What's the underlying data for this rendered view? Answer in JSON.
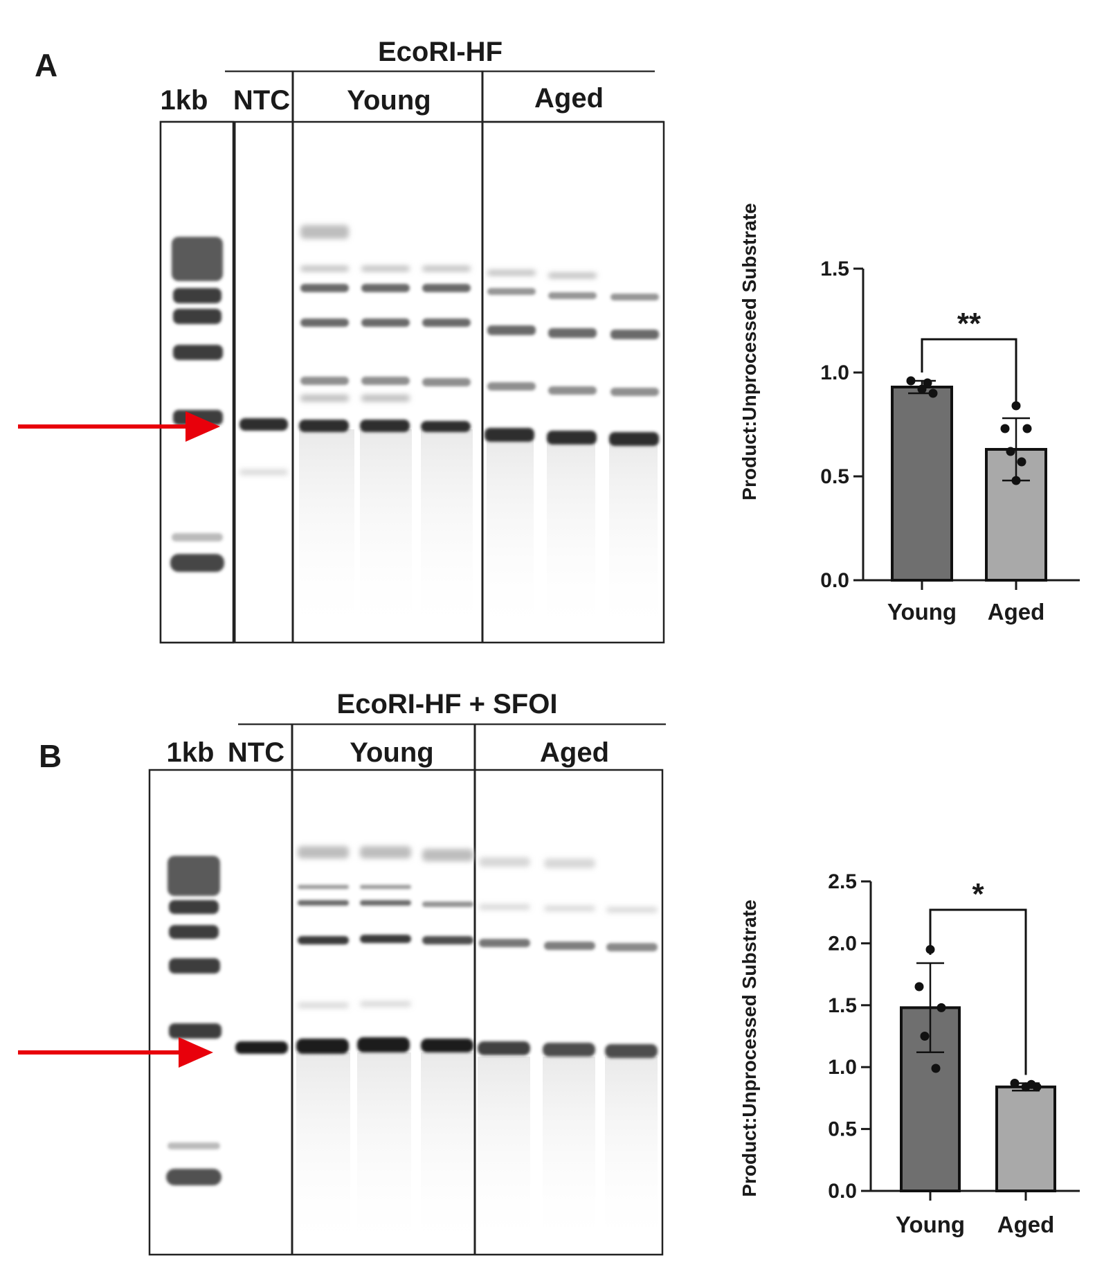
{
  "figure": {
    "panel_a": {
      "letter": "A",
      "enzyme": "EcoRI-HF",
      "lanes": {
        "ladder": "1kb",
        "ntc": "NTC",
        "young": "Young",
        "aged": "Aged"
      }
    },
    "panel_b": {
      "letter": "B",
      "enzyme": "EcoRI-HF + SFOI",
      "lanes": {
        "ladder": "1kb",
        "ntc": "NTC",
        "young": "Young",
        "aged": "Aged"
      }
    },
    "colors": {
      "arrow": "#e8000b",
      "bar_young": "#6f6f6f",
      "bar_aged": "#a9a9a9",
      "gel_band": "#2a2a2a"
    }
  },
  "chart_data": [
    {
      "type": "bar",
      "categories": [
        "Young",
        "Aged"
      ],
      "values": [
        0.93,
        0.63
      ],
      "errors": [
        0.03,
        0.15
      ],
      "points": [
        [
          0.96,
          0.92,
          0.9,
          0.95
        ],
        [
          0.84,
          0.73,
          0.73,
          0.62,
          0.57,
          0.48
        ]
      ],
      "ylabel": "Product:Unprocessed Substrate",
      "ylim": [
        0,
        1.5
      ],
      "yticks": [
        "0.0",
        "0.5",
        "1.0",
        "1.5"
      ],
      "significance": "**"
    },
    {
      "type": "bar",
      "categories": [
        "Young",
        "Aged"
      ],
      "values": [
        1.48,
        0.84
      ],
      "errors": [
        0.36,
        0.03
      ],
      "points": [
        [
          1.95,
          1.65,
          1.48,
          1.25,
          0.99
        ],
        [
          0.87,
          0.84,
          0.84,
          0.86
        ]
      ],
      "ylabel": "Product:Unprocessed Substrate",
      "ylim": [
        0,
        2.5
      ],
      "yticks": [
        "0.0",
        "0.5",
        "1.0",
        "1.5",
        "2.0",
        "2.5"
      ],
      "significance": "*"
    }
  ]
}
